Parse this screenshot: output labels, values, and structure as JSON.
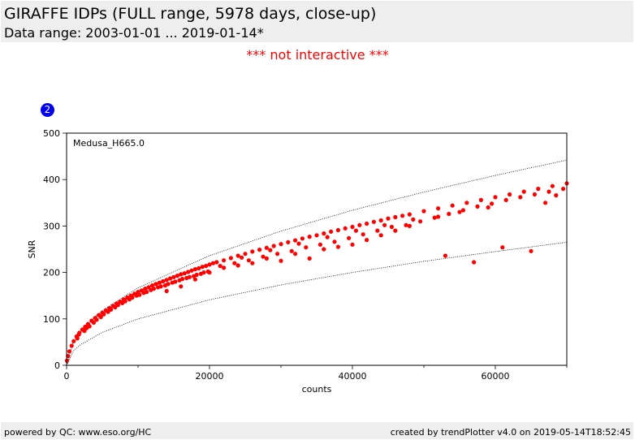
{
  "header": {
    "title": "GIRAFFE IDPs (FULL range, 5978 days, close-up)",
    "subtitle": "Data range: 2003-01-01 ... 2019-01-14*"
  },
  "notice": "*** not interactive ***",
  "badge": "2",
  "footer": {
    "left": "powered by QC: www.eso.org/HC",
    "right": "created by trendPlotter v4.0 on 2019-05-14T18:52:45"
  },
  "colors": {
    "points": "#ff0000",
    "badge": "#0000ee",
    "notice": "#ff0000"
  },
  "chart_data": {
    "type": "scatter",
    "annotation": "Medusa_H665.0",
    "xlabel": "counts",
    "ylabel": "SNR",
    "xlim": [
      0,
      70000
    ],
    "ylim": [
      0,
      500
    ],
    "xticks": [
      0,
      20000,
      40000,
      60000
    ],
    "xtick_labels": [
      "0",
      "20000",
      "40000",
      "60000"
    ],
    "yticks": [
      0,
      100,
      200,
      300,
      400,
      500
    ],
    "ytick_labels": [
      "0",
      "100",
      "200",
      "300",
      "400",
      "500"
    ],
    "grid": false,
    "envelopes": [
      {
        "style": "dotted",
        "x": [
          0,
          1000,
          2000,
          5000,
          10000,
          20000,
          30000,
          40000,
          50000,
          60000,
          70000
        ],
        "y": [
          0,
          53,
          75,
          118,
          167,
          236,
          289,
          334,
          373,
          409,
          442
        ]
      },
      {
        "style": "dotted",
        "x": [
          0,
          1000,
          2000,
          5000,
          10000,
          20000,
          30000,
          40000,
          50000,
          60000,
          70000
        ],
        "y": [
          0,
          32,
          45,
          71,
          100,
          141,
          173,
          200,
          224,
          245,
          265
        ]
      }
    ],
    "series": [
      {
        "x": [
          50,
          200,
          400,
          700,
          1000,
          1400,
          1800,
          2200,
          2600,
          3000,
          3500,
          4000,
          4500,
          5000,
          5500,
          6000,
          6500,
          7000,
          7500,
          8000,
          8500,
          9000,
          9500,
          10000,
          10500,
          11000,
          11500,
          12000,
          12500,
          13000,
          13500,
          14000,
          14500,
          15000,
          15500,
          16000,
          16500,
          17000,
          17500,
          18000,
          18500,
          19000,
          19500,
          20000,
          20500,
          21000,
          22000,
          23000,
          24000,
          25000,
          26000,
          27000,
          28000,
          29000,
          30000,
          31000,
          32000,
          33000,
          34000,
          35000,
          36000,
          37000,
          38000,
          39000,
          40000,
          41000,
          42000,
          43000,
          44000,
          45000,
          46000,
          47000,
          48000,
          50000,
          52000,
          54000,
          56000,
          58000,
          60000,
          62000,
          64000,
          66000,
          68000,
          70000,
          1500,
          2500,
          3200,
          4200,
          5200,
          6200,
          7200,
          8200,
          9200,
          10200,
          11200,
          12200,
          13200,
          14200,
          15200,
          16200,
          17200,
          18200,
          19200,
          21500,
          23500,
          25500,
          27500,
          29500,
          31500,
          33500,
          35500,
          37500,
          39500,
          41500,
          43500,
          45500,
          47500,
          49500,
          51500,
          53500,
          55500,
          57500,
          59500,
          61500,
          63500,
          65500,
          67500,
          69500,
          14000,
          16000,
          18000,
          20000,
          22000,
          24000,
          26000,
          28000,
          30000,
          32000,
          34000,
          36000,
          38000,
          40000,
          42000,
          44000,
          46000,
          48000,
          52000,
          55000,
          59000,
          67000,
          1700,
          2800,
          3800,
          4800,
          5800,
          6800,
          7800,
          8800,
          9800,
          10800,
          11800,
          12800,
          13800,
          14800,
          15800,
          16800,
          17800,
          18800,
          19800,
          24500,
          28500,
          32500,
          36500,
          40500,
          44500,
          48500,
          53000,
          57000,
          61000,
          65000,
          68500
        ],
        "y": [
          10,
          20,
          30,
          42,
          52,
          62,
          70,
          77,
          83,
          89,
          96,
          102,
          108,
          113,
          118,
          123,
          128,
          133,
          137,
          142,
          146,
          150,
          154,
          158,
          161,
          165,
          168,
          172,
          175,
          178,
          181,
          184,
          187,
          190,
          193,
          196,
          198,
          201,
          204,
          207,
          209,
          212,
          214,
          217,
          220,
          222,
          226,
          231,
          236,
          240,
          245,
          249,
          253,
          257,
          261,
          265,
          269,
          273,
          277,
          280,
          284,
          288,
          291,
          295,
          298,
          302,
          305,
          309,
          312,
          316,
          319,
          322,
          325,
          332,
          338,
          344,
          350,
          356,
          362,
          368,
          374,
          380,
          386,
          392,
          58,
          74,
          84,
          98,
          110,
          120,
          130,
          138,
          146,
          152,
          158,
          165,
          170,
          175,
          180,
          186,
          190,
          195,
          200,
          214,
          220,
          226,
          234,
          240,
          246,
          254,
          260,
          266,
          274,
          282,
          290,
          298,
          302,
          310,
          318,
          326,
          334,
          342,
          348,
          356,
          362,
          368,
          374,
          380,
          160,
          170,
          185,
          200,
          210,
          215,
          220,
          230,
          225,
          240,
          230,
          250,
          255,
          260,
          270,
          280,
          290,
          300,
          320,
          330,
          340,
          350,
          66,
          80,
          92,
          104,
          115,
          125,
          134,
          142,
          150,
          156,
          162,
          168,
          172,
          178,
          183,
          188,
          192,
          197,
          202,
          232,
          248,
          262,
          276,
          290,
          302,
          314,
          236,
          222,
          254,
          246,
          366
        ]
      }
    ]
  }
}
